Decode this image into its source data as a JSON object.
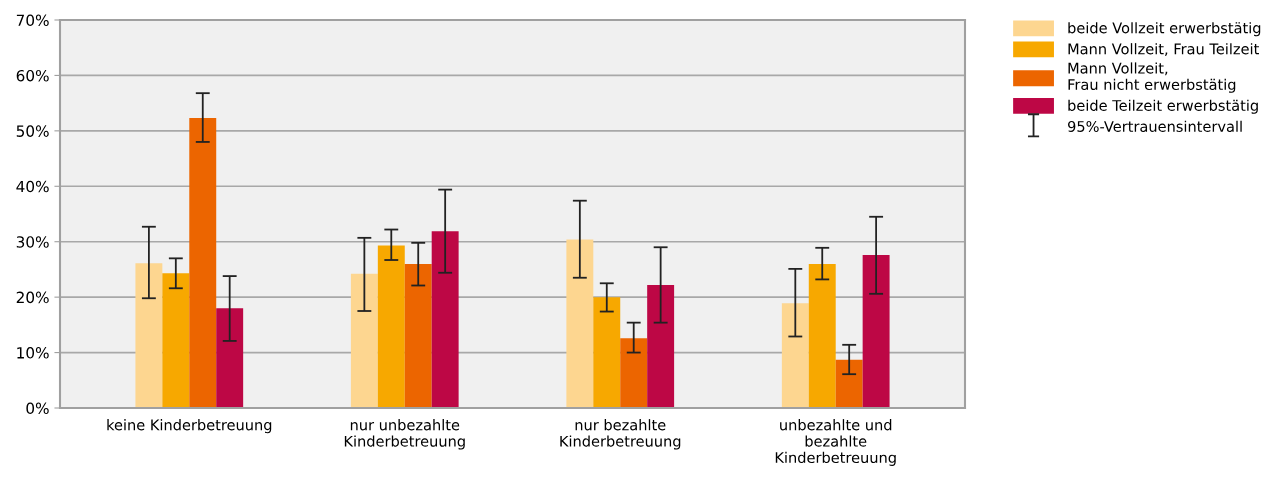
{
  "chart_data": {
    "type": "bar",
    "categories": [
      "keine Kinderbetreuung",
      "nur unbezahlte\nKinderbetreuung",
      "nur bezahlte\nKinderbetreuung",
      "unbezahlte und\nbezahlte\nKinderbetreuung"
    ],
    "series": [
      {
        "name": "beide Vollzeit erwerbstätig",
        "color": "#fdd690",
        "values": [
          26.1,
          24.2,
          30.4,
          18.9
        ],
        "errors": [
          [
            19.8,
            32.7
          ],
          [
            17.5,
            30.7
          ],
          [
            23.5,
            37.4
          ],
          [
            12.9,
            25.1
          ]
        ]
      },
      {
        "name": "Mann Vollzeit, Frau Teilzeit",
        "color": "#f7a800",
        "values": [
          24.3,
          29.3,
          20.0,
          26.0
        ],
        "errors": [
          [
            21.6,
            27.0
          ],
          [
            26.7,
            32.2
          ],
          [
            17.4,
            22.5
          ],
          [
            23.2,
            28.9
          ]
        ]
      },
      {
        "name": "Mann Vollzeit,\nFrau nicht erwerbstätig",
        "color": "#ec6500",
        "values": [
          52.3,
          26.0,
          12.6,
          8.7
        ],
        "errors": [
          [
            48.0,
            56.8
          ],
          [
            22.1,
            29.8
          ],
          [
            10.0,
            15.4
          ],
          [
            6.1,
            11.4
          ]
        ]
      },
      {
        "name": "beide Teilzeit erwerbstätig",
        "color": "#bd0745",
        "values": [
          18.0,
          31.9,
          22.2,
          27.6
        ],
        "errors": [
          [
            12.1,
            23.8
          ],
          [
            24.4,
            39.4
          ],
          [
            15.4,
            29.0
          ],
          [
            20.6,
            34.5
          ]
        ]
      }
    ],
    "annotations": [
      "95%-Vertrauensintervall"
    ],
    "ylim": [
      0,
      70
    ],
    "yticks": [
      {
        "value": 0,
        "label": "0%"
      },
      {
        "value": 10,
        "label": "10%"
      },
      {
        "value": 20,
        "label": "20%"
      },
      {
        "value": 30,
        "label": "30%"
      },
      {
        "value": 40,
        "label": "40%"
      },
      {
        "value": 50,
        "label": "50%"
      },
      {
        "value": 60,
        "label": "60%"
      },
      {
        "value": 70,
        "label": "70%"
      }
    ],
    "grid": "y",
    "legend": "top right"
  }
}
